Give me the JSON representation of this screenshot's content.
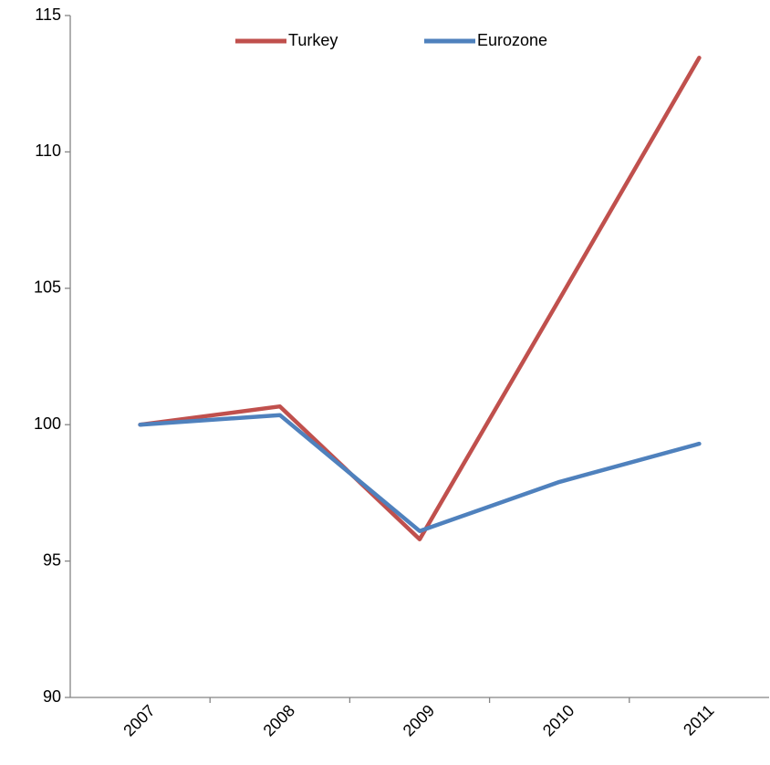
{
  "chart_data": {
    "type": "line",
    "categories": [
      "2007",
      "2008",
      "2009",
      "2010",
      "2011"
    ],
    "series": [
      {
        "name": "Turkey",
        "color": "#c0504d",
        "values": [
          100,
          100.67,
          95.8,
          104.6,
          113.45
        ]
      },
      {
        "name": "Eurozone",
        "color": "#4f81bd",
        "values": [
          100,
          100.35,
          96.1,
          97.9,
          99.3
        ]
      }
    ],
    "ylim": [
      90,
      115
    ],
    "yticks": [
      90,
      95,
      100,
      105,
      110,
      115
    ],
    "legend": "top"
  }
}
